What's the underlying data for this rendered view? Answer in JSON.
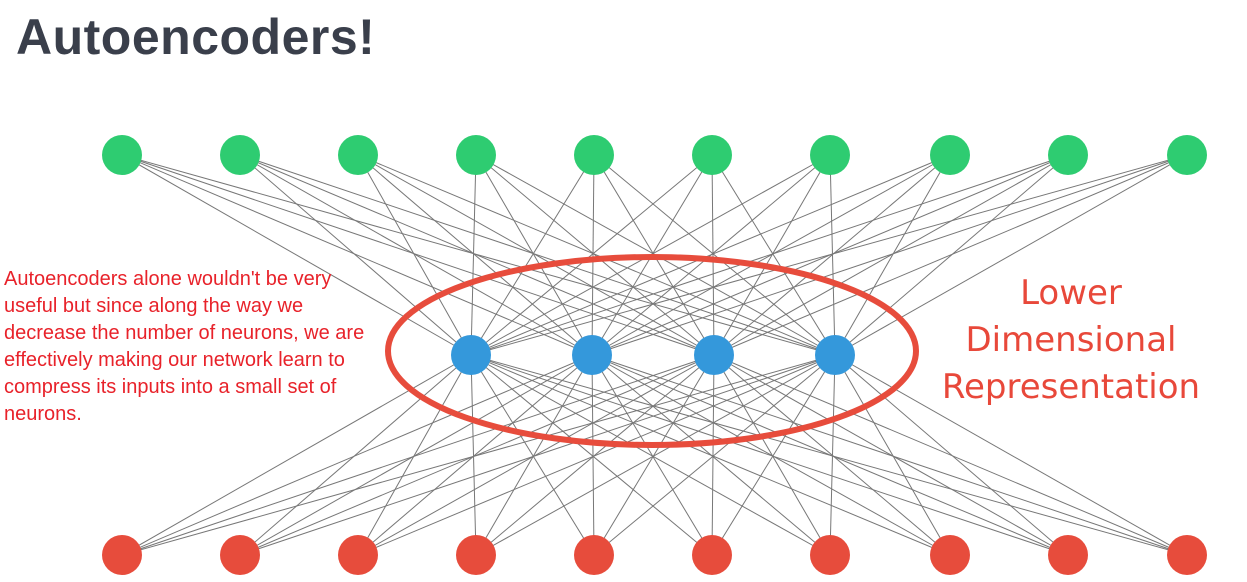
{
  "title": "Autoencoders!",
  "note": "Autoencoders alone wouldn't be very useful but since along the way we decrease the number of neurons, we are effectively making our network learn to compress its inputs into a small set of neurons.",
  "annotation": {
    "lines": [
      "Lower",
      "Dimensional",
      "Representation"
    ]
  },
  "diagram": {
    "type": "fully-connected autoencoder",
    "layers": [
      {
        "nodes": 10,
        "color": "#2ecc71"
      },
      {
        "nodes": 4,
        "color": "#3498db"
      },
      {
        "nodes": 10,
        "color": "#e74c3c"
      }
    ],
    "edge_color": "#777777",
    "highlight_color": "#e74c3c"
  }
}
